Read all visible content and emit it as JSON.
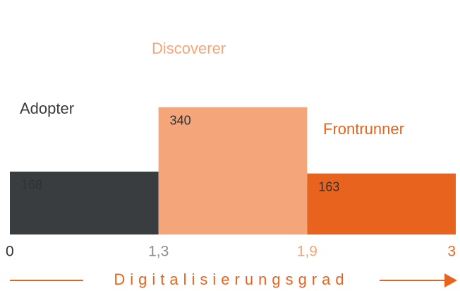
{
  "chart_data": {
    "type": "histogram",
    "categories": [
      "Adopter",
      "Discoverer",
      "Frontrunner"
    ],
    "values": [
      168,
      340,
      163
    ],
    "colors": [
      "#3a3d40",
      "#f4a57a",
      "#e8641e"
    ],
    "bins": [
      0,
      1.3,
      1.9,
      3
    ],
    "xticks": [
      0,
      {
        "value": 1.3,
        "label": "1,3"
      },
      {
        "value": 1.9,
        "label": "1,9"
      },
      3
    ],
    "ylim": [
      0,
      600
    ],
    "xlabel": "Digitalisierungsgrad"
  }
}
